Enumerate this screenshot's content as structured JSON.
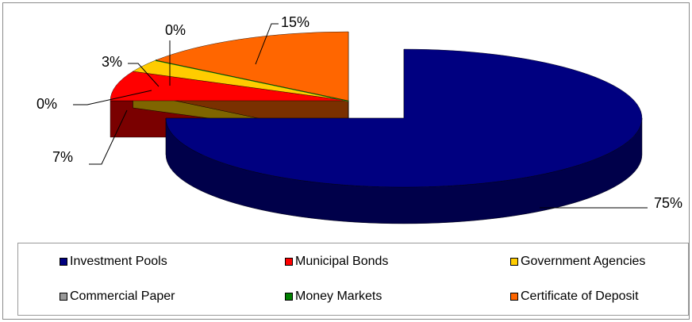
{
  "chart_data": {
    "type": "pie",
    "three_d": true,
    "legend_position": "bottom",
    "slices": [
      {
        "label": "Investment Pools",
        "value": 75,
        "display": "75%",
        "color": "#000080",
        "side": "#00004a"
      },
      {
        "label": "Municipal Bonds",
        "value": 7,
        "display": "7%",
        "color": "#ff0000",
        "side": "#7a0000"
      },
      {
        "label": "Government Agencies",
        "value": 3,
        "display": "3%",
        "color": "#ffcc00",
        "side": "#7f6500"
      },
      {
        "label": "Commercial Paper",
        "value": 0,
        "display": "0%",
        "color": "#999999",
        "side": "#555555"
      },
      {
        "label": "Money Markets",
        "value": 0,
        "display": "0%",
        "color": "#008000",
        "side": "#004000"
      },
      {
        "label": "Certificate of Deposit",
        "value": 15,
        "display": "15%",
        "color": "#ff6600",
        "side": "#7a3000"
      }
    ]
  }
}
